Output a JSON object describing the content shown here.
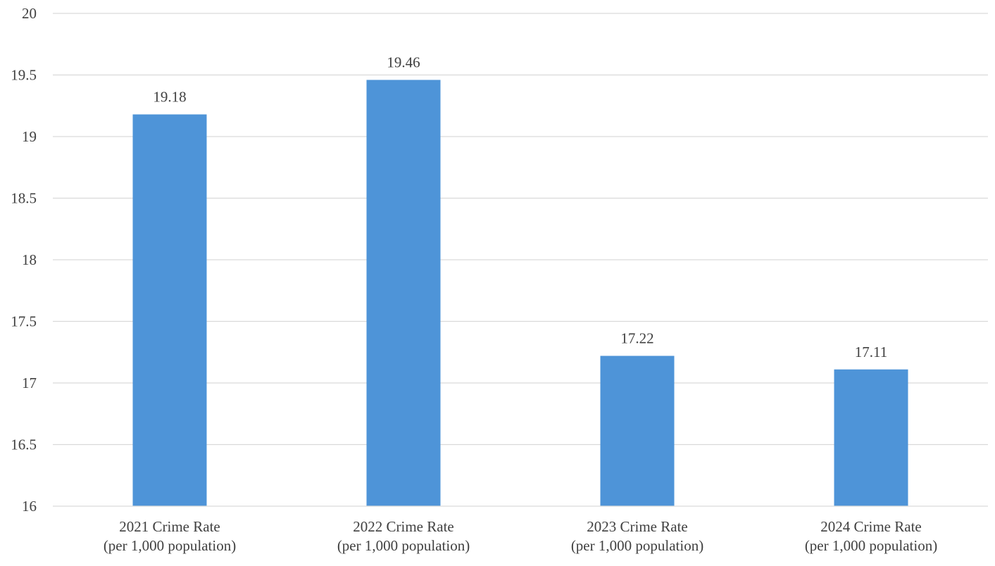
{
  "chart_data": {
    "type": "bar",
    "title": "",
    "xlabel": "",
    "ylabel": "",
    "categories": [
      [
        "2021 Crime Rate",
        "(per 1,000 population)"
      ],
      [
        "2022 Crime Rate",
        "(per 1,000 population)"
      ],
      [
        "2023 Crime Rate",
        "(per 1,000 population)"
      ],
      [
        "2024 Crime Rate",
        "(per 1,000 population)"
      ]
    ],
    "values": [
      19.18,
      19.46,
      17.22,
      17.11
    ],
    "data_labels": [
      "19.18",
      "19.46",
      "17.22",
      "17.11"
    ],
    "ylim": [
      16,
      20
    ],
    "yticks": [
      16,
      16.5,
      17,
      17.5,
      18,
      18.5,
      19,
      19.5,
      20
    ],
    "ytick_labels": [
      "16",
      "16.5",
      "17",
      "17.5",
      "18",
      "18.5",
      "19",
      "19.5",
      "20"
    ],
    "grid": true,
    "legend": "none",
    "bar_color": "#4e94d8"
  }
}
